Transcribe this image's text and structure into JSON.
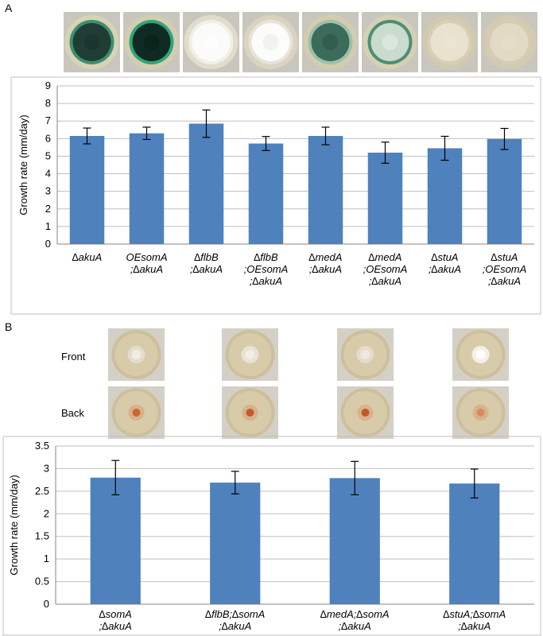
{
  "panel_labels": {
    "a": "A",
    "b": "B"
  },
  "panel_b_rows": {
    "front": "Front",
    "back": "Back"
  },
  "colors": {
    "bar": "#4f81bd",
    "grid": "#bfbfbf",
    "axis": "#868686"
  },
  "plates_a": [
    {
      "name": "akuA",
      "rim": "#d8d2b6",
      "colony": "#1f3d35",
      "edge": "#3f8f6e",
      "center": "#173027"
    },
    {
      "name": "OEsomA-akuA",
      "rim": "#d4ceae",
      "colony": "#0f2a22",
      "edge": "#2ea57a",
      "center": "#0a1f18"
    },
    {
      "name": "flbB-akuA",
      "rim": "#e2dccb",
      "colony": "#fbfbf9",
      "edge": "#f0efe8",
      "center": "#ffffff"
    },
    {
      "name": "flbB-OEsomA-akuA",
      "rim": "#d9d3c0",
      "colony": "#fcfcfa",
      "edge": "#e6e4da",
      "center": "#ececE6"
    },
    {
      "name": "medA-akuA",
      "rim": "#d3ccae",
      "colony": "#3b6b5a",
      "edge": "#9dbfae",
      "center": "#2d5346"
    },
    {
      "name": "medA-OEsomA-akuA",
      "rim": "#d6d0b5",
      "colony": "#c9dccd",
      "edge": "#4f8e74",
      "center": "#e8efe6"
    },
    {
      "name": "stuA-akuA",
      "rim": "#d2cab0",
      "colony": "#e9e2cf",
      "edge": "#d8cfb7",
      "center": "#ece6d5"
    },
    {
      "name": "stuA-OEsomA-akuA",
      "rim": "#d3cbb1",
      "colony": "#e2dac4",
      "edge": "#d6ccb2",
      "center": "#e6dfcb"
    }
  ],
  "plates_b": [
    {
      "name": "somA-akuA",
      "front_colony": "#e6dccd",
      "front_spot": "#f1ece4",
      "back_spot": "#c9672f"
    },
    {
      "name": "flbB-somA-akuA",
      "front_colony": "#e9e1d3",
      "front_spot": "#f2ede6",
      "back_spot": "#c55a2a"
    },
    {
      "name": "medA-somA-akuA",
      "front_colony": "#e4dbcb",
      "front_spot": "#efe9df",
      "back_spot": "#c1582a"
    },
    {
      "name": "stuA-somA-akuA",
      "front_colony": "#f3f0ea",
      "front_spot": "#ffffff",
      "back_spot": "#d88a5a"
    }
  ],
  "chart_data": [
    {
      "type": "bar",
      "title": "",
      "xlabel": "",
      "ylabel": "Growth rate (mm/day)",
      "ylim": [
        0,
        9
      ],
      "yticks": [
        "0",
        "1",
        "2",
        "3",
        "4",
        "5",
        "6",
        "7",
        "8",
        "9"
      ],
      "grid": true,
      "categories": [
        [
          "∆akuA"
        ],
        [
          "OEsomA",
          ";∆akuA"
        ],
        [
          "∆flbB",
          ";∆akuA"
        ],
        [
          "∆flbB",
          ";OEsomA",
          ";∆akuA"
        ],
        [
          "∆medA",
          ";∆akuA"
        ],
        [
          "∆medA",
          ";OEsomA",
          ";∆akuA"
        ],
        [
          "∆stuA",
          ";∆akuA"
        ],
        [
          "∆stuA",
          ";OEsomA",
          ";∆akuA"
        ]
      ],
      "values": [
        6.15,
        6.3,
        6.85,
        5.72,
        6.15,
        5.2,
        5.45,
        5.98
      ],
      "errors": [
        0.45,
        0.35,
        0.78,
        0.4,
        0.5,
        0.6,
        0.68,
        0.6
      ]
    },
    {
      "type": "bar",
      "title": "",
      "xlabel": "",
      "ylabel": "Growth rate (mm/day)",
      "ylim": [
        0,
        3.5
      ],
      "yticks": [
        "0",
        "0.5",
        "1",
        "1.5",
        "2",
        "2.5",
        "3",
        "3.5"
      ],
      "grid": true,
      "categories": [
        [
          "∆somA",
          ";∆akuA"
        ],
        [
          "∆flbB;∆somA",
          ";∆akuA"
        ],
        [
          "∆medA;∆somA",
          ";∆akuA"
        ],
        [
          "∆stuA;∆somA",
          ";∆akuA"
        ]
      ],
      "values": [
        2.8,
        2.69,
        2.79,
        2.67
      ],
      "errors": [
        0.38,
        0.25,
        0.37,
        0.32
      ]
    }
  ]
}
